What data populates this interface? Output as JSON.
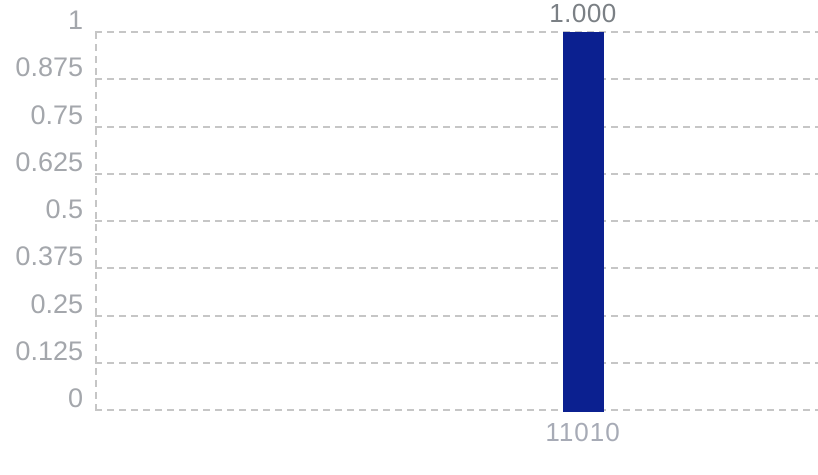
{
  "chart_data": {
    "type": "bar",
    "title": "",
    "xlabel": "",
    "ylabel": "",
    "categories": [
      "11010"
    ],
    "values": [
      1.0
    ],
    "value_labels": [
      "1.000"
    ],
    "ylim": [
      0,
      1
    ],
    "yticks": [
      1,
      0.875,
      0.75,
      0.625,
      0.5,
      0.375,
      0.25,
      0.125,
      0
    ],
    "ytick_labels": [
      "1",
      "0.875",
      "0.75",
      "0.625",
      "0.5",
      "0.375",
      "0.25",
      "0.125",
      "0"
    ],
    "grid": "horizontal-dashed",
    "legend": "none",
    "colors": {
      "bar": "#0b2090",
      "gridline": "#c6c6c6",
      "ytick_label": "#a4a7ac",
      "xtick_label": "#a7abb6",
      "value_label": "#7b8085"
    }
  }
}
